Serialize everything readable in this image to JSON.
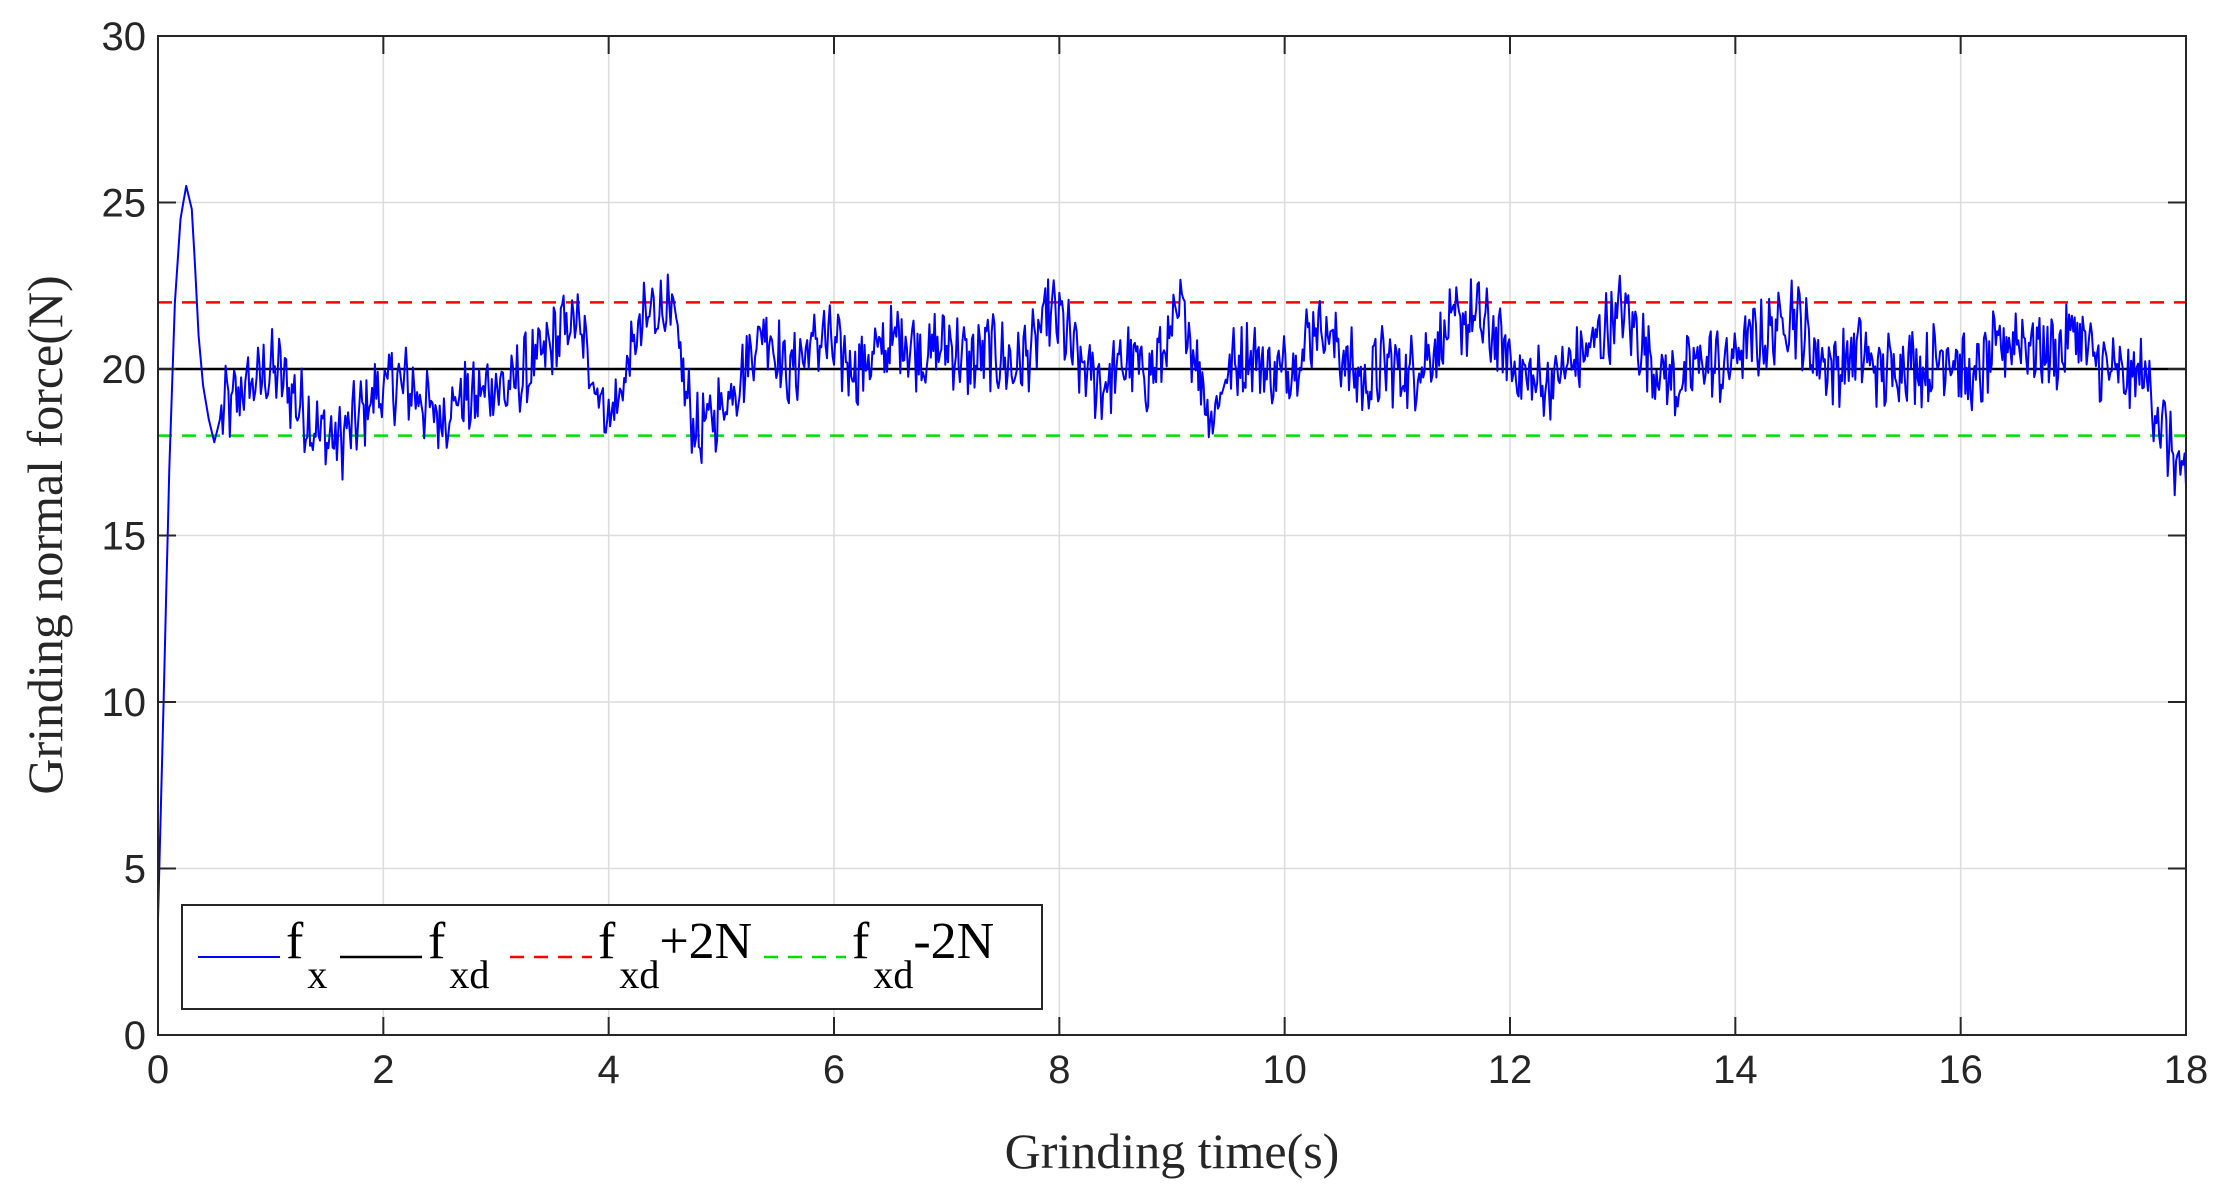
{
  "chart_data": {
    "type": "line",
    "xlabel": "Grinding time(s)",
    "ylabel": "Grinding normal force(N)",
    "xlim": [
      0,
      18
    ],
    "ylim": [
      0,
      30
    ],
    "xticks": [
      "0",
      "2",
      "4",
      "6",
      "8",
      "10",
      "12",
      "14",
      "16",
      "18"
    ],
    "yticks": [
      "0",
      "5",
      "10",
      "15",
      "20",
      "25",
      "30"
    ],
    "grid": true,
    "legend_position": "bottom-left",
    "series": [
      {
        "name": "fx",
        "label_main": "f",
        "label_sub": "x",
        "color": "#0000ff",
        "style": "solid",
        "x": [
          0,
          0.05,
          0.1,
          0.15,
          0.2,
          0.25,
          0.3,
          0.33,
          0.36,
          0.4,
          0.45,
          0.5,
          0.55,
          0.6,
          0.65,
          0.7,
          0.8,
          0.9,
          1.0,
          1.1,
          1.2,
          1.3,
          1.4,
          1.5,
          1.6,
          1.7,
          1.8,
          1.9,
          2.0,
          2.1,
          2.2,
          2.3,
          2.4,
          2.5,
          2.6,
          2.7,
          2.8,
          2.9,
          3.0,
          3.1,
          3.2,
          3.3,
          3.4,
          3.5,
          3.6,
          3.7,
          3.8,
          3.9,
          4.0,
          4.1,
          4.2,
          4.3,
          4.4,
          4.5,
          4.6,
          4.7,
          4.8,
          4.9,
          5.0,
          5.1,
          5.2,
          5.3,
          5.4,
          5.5,
          5.6,
          5.7,
          5.8,
          5.9,
          6.0,
          6.2,
          6.4,
          6.6,
          6.8,
          7.0,
          7.2,
          7.4,
          7.6,
          7.8,
          7.9,
          8.0,
          8.2,
          8.4,
          8.6,
          8.8,
          9.0,
          9.1,
          9.2,
          9.35,
          9.5,
          9.7,
          9.9,
          10.1,
          10.3,
          10.5,
          10.7,
          10.9,
          11.1,
          11.3,
          11.5,
          11.7,
          11.9,
          12.1,
          12.3,
          12.5,
          12.7,
          12.9,
          13.0,
          13.1,
          13.3,
          13.5,
          13.7,
          13.9,
          14.1,
          14.3,
          14.5,
          14.7,
          14.9,
          15.1,
          15.3,
          15.5,
          15.7,
          15.9,
          16.1,
          16.3,
          16.5,
          16.7,
          16.9,
          17.0,
          17.2,
          17.4,
          17.5,
          17.6,
          17.7,
          17.8,
          17.9,
          18.0
        ],
        "y": [
          3.5,
          10,
          17,
          22,
          24.5,
          25.5,
          24.8,
          23,
          21,
          19.5,
          18.5,
          17.8,
          18.5,
          19.0,
          18.8,
          19.2,
          19.5,
          19.7,
          20.0,
          19.8,
          19.2,
          18.7,
          18.2,
          18.0,
          17.8,
          18.2,
          18.6,
          19.2,
          19.4,
          19.6,
          19.5,
          19.3,
          18.8,
          18.5,
          18.9,
          19.2,
          19.0,
          19.4,
          19.6,
          19.3,
          19.7,
          20.0,
          20.3,
          20.8,
          21.2,
          21.5,
          20.5,
          19.5,
          18.5,
          19.2,
          20.5,
          21.3,
          21.8,
          22.0,
          21.0,
          19.0,
          18.0,
          18.5,
          18.8,
          19.5,
          20.0,
          20.8,
          21.3,
          20.5,
          19.8,
          20.3,
          20.7,
          21.0,
          20.6,
          20.0,
          20.5,
          21.0,
          20.4,
          20.8,
          20.2,
          20.6,
          20.0,
          20.8,
          21.7,
          21.5,
          20.0,
          19.5,
          20.3,
          19.8,
          21.0,
          21.8,
          20.5,
          18.5,
          20.0,
          20.5,
          19.8,
          20.3,
          21.5,
          20.5,
          19.5,
          20.2,
          19.8,
          20.5,
          21.3,
          21.6,
          20.8,
          19.8,
          19.5,
          20.0,
          20.6,
          21.4,
          21.8,
          21.2,
          20.0,
          19.5,
          20.3,
          20.0,
          20.8,
          21.0,
          21.8,
          20.5,
          20.0,
          20.6,
          19.8,
          20.3,
          20.0,
          20.6,
          19.5,
          20.5,
          21.0,
          20.6,
          20.5,
          21.3,
          20.2,
          19.8,
          19.6,
          20.0,
          19.2,
          18.2,
          17.3,
          16.5
        ]
      },
      {
        "name": "fxd",
        "label_main": "f",
        "label_sub": "xd",
        "label_suffix": "",
        "color": "#000000",
        "style": "solid",
        "x": [
          0,
          18
        ],
        "y": [
          20,
          20
        ]
      },
      {
        "name": "fxd+2N",
        "label_main": "f",
        "label_sub": "xd",
        "label_suffix": "+2N",
        "color": "#ff0000",
        "style": "dashed",
        "x": [
          0,
          18
        ],
        "y": [
          22,
          22
        ]
      },
      {
        "name": "fxd-2N",
        "label_main": "f",
        "label_sub": "xd",
        "label_suffix": "-2N",
        "color": "#00dd00",
        "style": "dashed",
        "x": [
          0,
          18
        ],
        "y": [
          18,
          18
        ]
      }
    ]
  }
}
